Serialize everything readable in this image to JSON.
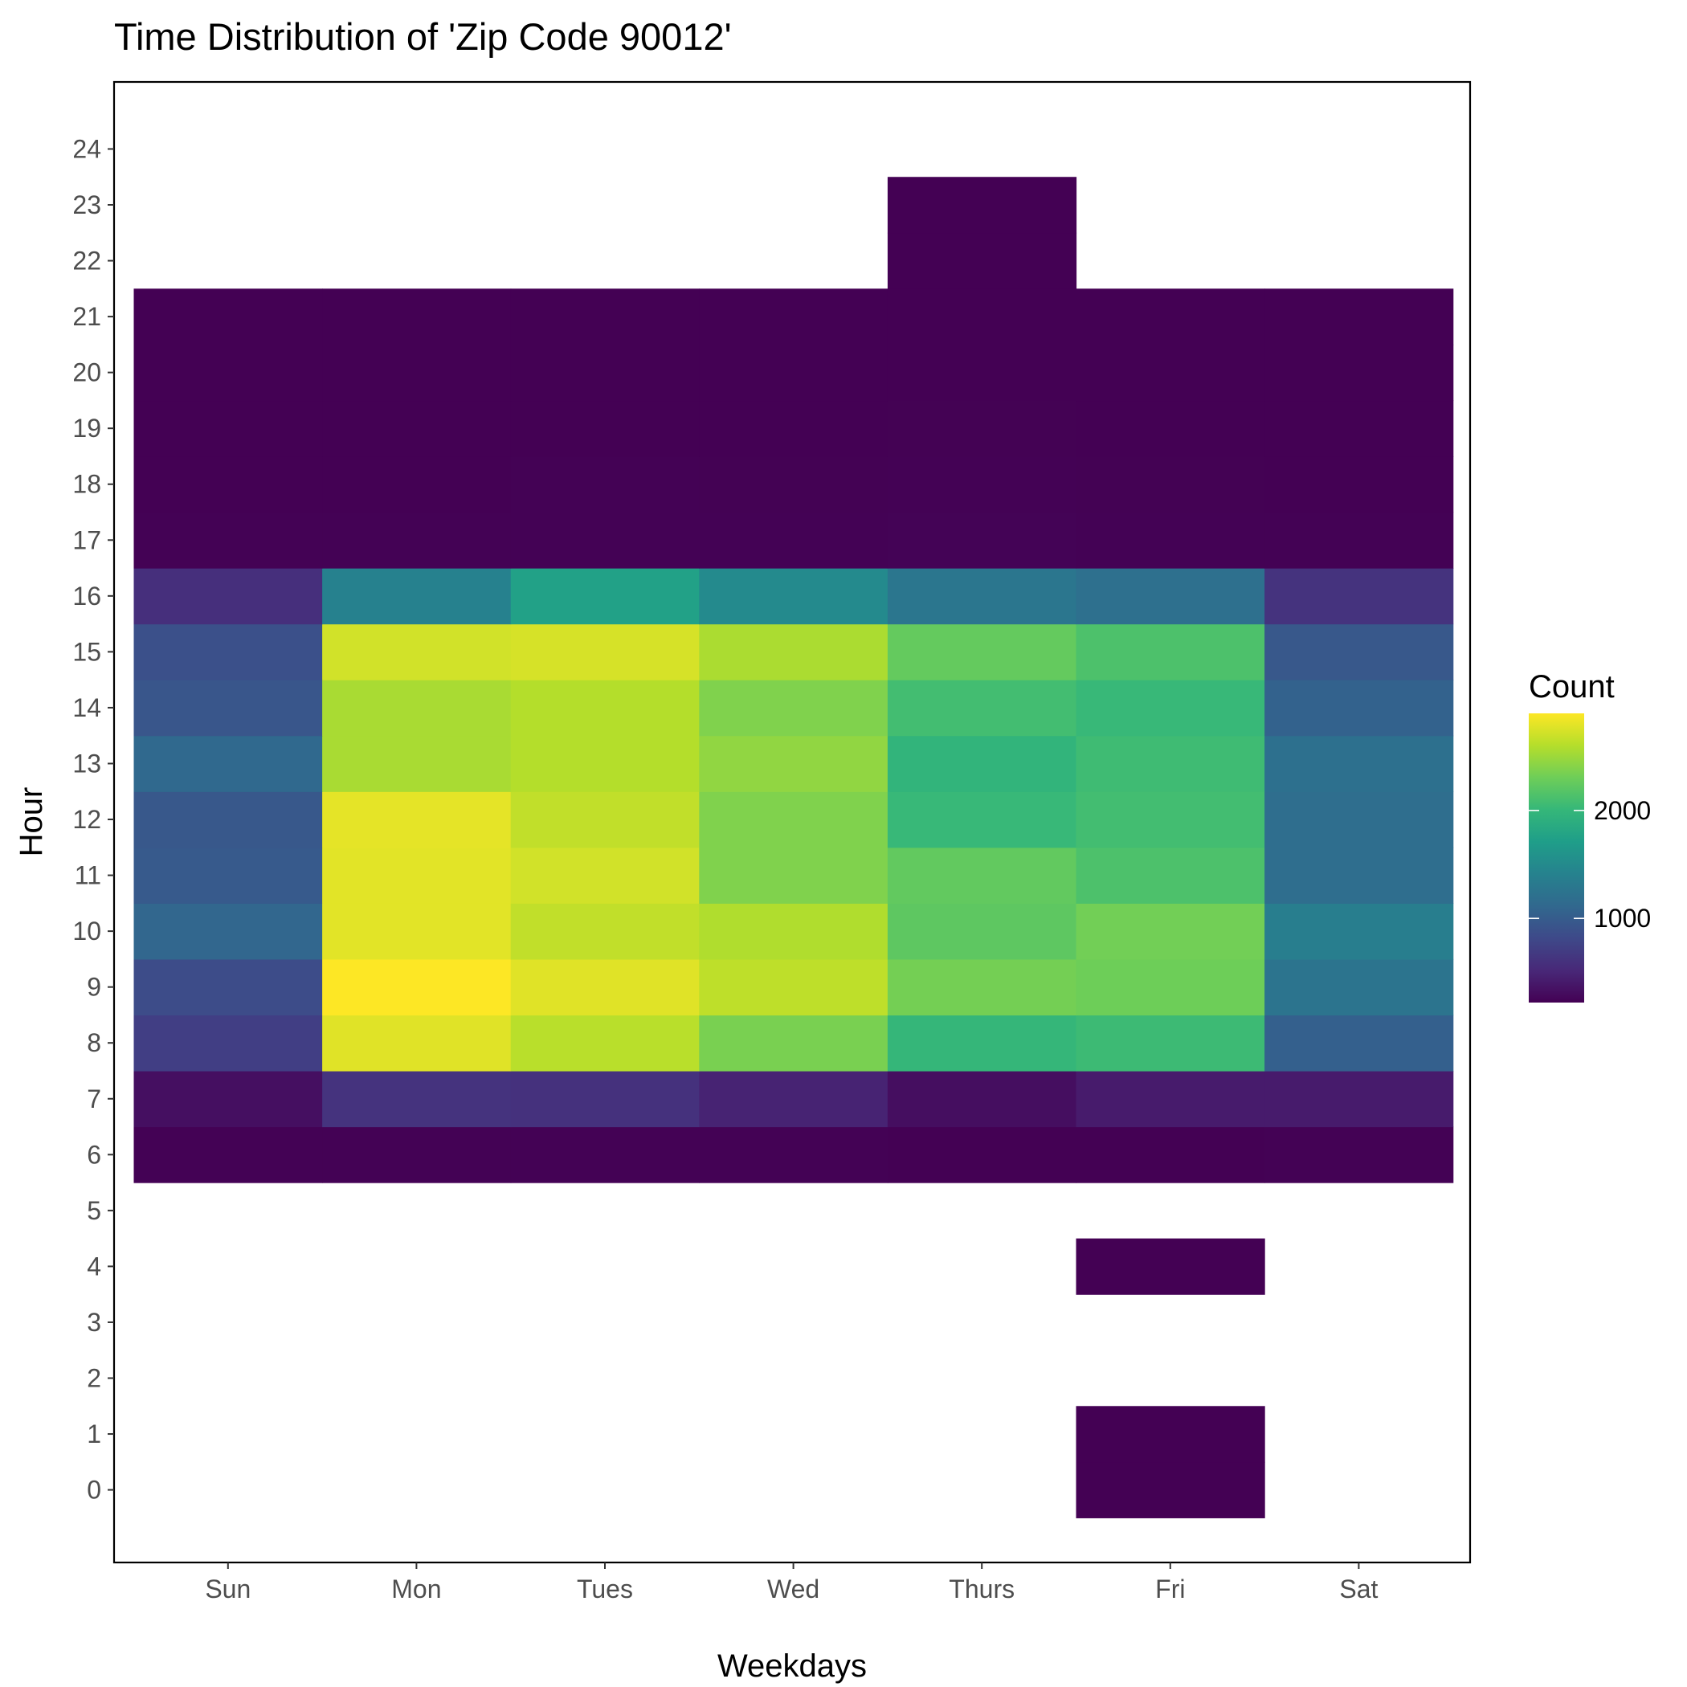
{
  "chart_data": {
    "type": "heatmap",
    "title": "Time Distribution of 'Zip Code 90012'",
    "xlabel": "Weekdays",
    "ylabel": "Hour",
    "x_categories": [
      "Sun",
      "Mon",
      "Tues",
      "Wed",
      "Thurs",
      "Fri",
      "Sat"
    ],
    "y_ticks": [
      0,
      1,
      2,
      3,
      4,
      5,
      6,
      7,
      8,
      9,
      10,
      11,
      12,
      13,
      14,
      15,
      16,
      17,
      18,
      19,
      20,
      21,
      22,
      23,
      24
    ],
    "y_range": [
      -1.3,
      25.2
    ],
    "legend": {
      "title": "Count",
      "position": "right",
      "min": 220,
      "max": 2900,
      "breaks": [
        1000,
        2000
      ]
    },
    "colorscale": "viridis",
    "grid": false,
    "cells": [
      {
        "day": "Fri",
        "hour": 0,
        "value": 220
      },
      {
        "day": "Fri",
        "hour": 1,
        "value": 220
      },
      {
        "day": "Fri",
        "hour": 4,
        "value": 220
      },
      {
        "day": "Sun",
        "hour": 6,
        "value": 230
      },
      {
        "day": "Mon",
        "hour": 6,
        "value": 230
      },
      {
        "day": "Tues",
        "hour": 6,
        "value": 225
      },
      {
        "day": "Wed",
        "hour": 6,
        "value": 225
      },
      {
        "day": "Thurs",
        "hour": 6,
        "value": 222
      },
      {
        "day": "Fri",
        "hour": 6,
        "value": 222
      },
      {
        "day": "Sat",
        "hour": 6,
        "value": 225
      },
      {
        "day": "Sun",
        "hour": 7,
        "value": 330
      },
      {
        "day": "Mon",
        "hour": 7,
        "value": 620
      },
      {
        "day": "Tues",
        "hour": 7,
        "value": 600
      },
      {
        "day": "Wed",
        "hour": 7,
        "value": 480
      },
      {
        "day": "Thurs",
        "hour": 7,
        "value": 320
      },
      {
        "day": "Fri",
        "hour": 7,
        "value": 420
      },
      {
        "day": "Sat",
        "hour": 7,
        "value": 420
      },
      {
        "day": "Sun",
        "hour": 8,
        "value": 720
      },
      {
        "day": "Mon",
        "hour": 8,
        "value": 2780
      },
      {
        "day": "Tues",
        "hour": 8,
        "value": 2620
      },
      {
        "day": "Wed",
        "hour": 8,
        "value": 2350
      },
      {
        "day": "Thurs",
        "hour": 8,
        "value": 2000
      },
      {
        "day": "Fri",
        "hour": 8,
        "value": 2050
      },
      {
        "day": "Sat",
        "hour": 8,
        "value": 1040
      },
      {
        "day": "Sun",
        "hour": 9,
        "value": 840
      },
      {
        "day": "Mon",
        "hour": 9,
        "value": 2900
      },
      {
        "day": "Tues",
        "hour": 9,
        "value": 2780
      },
      {
        "day": "Wed",
        "hour": 9,
        "value": 2640
      },
      {
        "day": "Thurs",
        "hour": 9,
        "value": 2330
      },
      {
        "day": "Fri",
        "hour": 9,
        "value": 2300
      },
      {
        "day": "Sat",
        "hour": 9,
        "value": 1250
      },
      {
        "day": "Sun",
        "hour": 10,
        "value": 1100
      },
      {
        "day": "Mon",
        "hour": 10,
        "value": 2790
      },
      {
        "day": "Tues",
        "hour": 10,
        "value": 2650
      },
      {
        "day": "Wed",
        "hour": 10,
        "value": 2580
      },
      {
        "day": "Thurs",
        "hour": 10,
        "value": 2220
      },
      {
        "day": "Fri",
        "hour": 10,
        "value": 2320
      },
      {
        "day": "Sat",
        "hour": 10,
        "value": 1370
      },
      {
        "day": "Sun",
        "hour": 11,
        "value": 980
      },
      {
        "day": "Mon",
        "hour": 11,
        "value": 2790
      },
      {
        "day": "Tues",
        "hour": 11,
        "value": 2720
      },
      {
        "day": "Wed",
        "hour": 11,
        "value": 2380
      },
      {
        "day": "Thurs",
        "hour": 11,
        "value": 2240
      },
      {
        "day": "Fri",
        "hour": 11,
        "value": 2130
      },
      {
        "day": "Sat",
        "hour": 11,
        "value": 1180
      },
      {
        "day": "Sun",
        "hour": 12,
        "value": 960
      },
      {
        "day": "Mon",
        "hour": 12,
        "value": 2800
      },
      {
        "day": "Tues",
        "hour": 12,
        "value": 2650
      },
      {
        "day": "Wed",
        "hour": 12,
        "value": 2380
      },
      {
        "day": "Thurs",
        "hour": 12,
        "value": 2020
      },
      {
        "day": "Fri",
        "hour": 12,
        "value": 2080
      },
      {
        "day": "Sat",
        "hour": 12,
        "value": 1180
      },
      {
        "day": "Sun",
        "hour": 13,
        "value": 1130
      },
      {
        "day": "Mon",
        "hour": 13,
        "value": 2550
      },
      {
        "day": "Tues",
        "hour": 13,
        "value": 2600
      },
      {
        "day": "Wed",
        "hour": 13,
        "value": 2450
      },
      {
        "day": "Thurs",
        "hour": 13,
        "value": 1970
      },
      {
        "day": "Fri",
        "hour": 13,
        "value": 2060
      },
      {
        "day": "Sat",
        "hour": 13,
        "value": 1210
      },
      {
        "day": "Sun",
        "hour": 14,
        "value": 940
      },
      {
        "day": "Mon",
        "hour": 14,
        "value": 2550
      },
      {
        "day": "Tues",
        "hour": 14,
        "value": 2600
      },
      {
        "day": "Wed",
        "hour": 14,
        "value": 2380
      },
      {
        "day": "Thurs",
        "hour": 14,
        "value": 2080
      },
      {
        "day": "Fri",
        "hour": 14,
        "value": 2020
      },
      {
        "day": "Sat",
        "hour": 14,
        "value": 1060
      },
      {
        "day": "Sun",
        "hour": 15,
        "value": 880
      },
      {
        "day": "Mon",
        "hour": 15,
        "value": 2720
      },
      {
        "day": "Tues",
        "hour": 15,
        "value": 2740
      },
      {
        "day": "Wed",
        "hour": 15,
        "value": 2560
      },
      {
        "day": "Thurs",
        "hour": 15,
        "value": 2250
      },
      {
        "day": "Fri",
        "hour": 15,
        "value": 2130
      },
      {
        "day": "Sat",
        "hour": 15,
        "value": 960
      },
      {
        "day": "Sun",
        "hour": 16,
        "value": 580
      },
      {
        "day": "Mon",
        "hour": 16,
        "value": 1400
      },
      {
        "day": "Tues",
        "hour": 16,
        "value": 1750
      },
      {
        "day": "Wed",
        "hour": 16,
        "value": 1500
      },
      {
        "day": "Thurs",
        "hour": 16,
        "value": 1270
      },
      {
        "day": "Fri",
        "hour": 16,
        "value": 1200
      },
      {
        "day": "Sat",
        "hour": 16,
        "value": 620
      },
      {
        "day": "Sun",
        "hour": 17,
        "value": 225
      },
      {
        "day": "Mon",
        "hour": 17,
        "value": 225
      },
      {
        "day": "Tues",
        "hour": 17,
        "value": 230
      },
      {
        "day": "Wed",
        "hour": 17,
        "value": 228
      },
      {
        "day": "Thurs",
        "hour": 17,
        "value": 235
      },
      {
        "day": "Fri",
        "hour": 17,
        "value": 228
      },
      {
        "day": "Sat",
        "hour": 17,
        "value": 225
      },
      {
        "day": "Sun",
        "hour": 18,
        "value": 222
      },
      {
        "day": "Mon",
        "hour": 18,
        "value": 222
      },
      {
        "day": "Tues",
        "hour": 18,
        "value": 225
      },
      {
        "day": "Wed",
        "hour": 18,
        "value": 224
      },
      {
        "day": "Thurs",
        "hour": 18,
        "value": 228
      },
      {
        "day": "Fri",
        "hour": 18,
        "value": 224
      },
      {
        "day": "Sat",
        "hour": 18,
        "value": 222
      },
      {
        "day": "Sun",
        "hour": 19,
        "value": 221
      },
      {
        "day": "Mon",
        "hour": 19,
        "value": 221
      },
      {
        "day": "Tues",
        "hour": 19,
        "value": 222
      },
      {
        "day": "Wed",
        "hour": 19,
        "value": 222
      },
      {
        "day": "Thurs",
        "hour": 19,
        "value": 224
      },
      {
        "day": "Fri",
        "hour": 19,
        "value": 222
      },
      {
        "day": "Sat",
        "hour": 19,
        "value": 221
      },
      {
        "day": "Sun",
        "hour": 20,
        "value": 220
      },
      {
        "day": "Mon",
        "hour": 20,
        "value": 220
      },
      {
        "day": "Tues",
        "hour": 20,
        "value": 221
      },
      {
        "day": "Wed",
        "hour": 20,
        "value": 221
      },
      {
        "day": "Thurs",
        "hour": 20,
        "value": 222
      },
      {
        "day": "Fri",
        "hour": 20,
        "value": 221
      },
      {
        "day": "Sat",
        "hour": 20,
        "value": 220
      },
      {
        "day": "Sun",
        "hour": 21,
        "value": 220
      },
      {
        "day": "Mon",
        "hour": 21,
        "value": 220
      },
      {
        "day": "Tues",
        "hour": 21,
        "value": 220
      },
      {
        "day": "Wed",
        "hour": 21,
        "value": 220
      },
      {
        "day": "Thurs",
        "hour": 21,
        "value": 220
      },
      {
        "day": "Fri",
        "hour": 21,
        "value": 220
      },
      {
        "day": "Sat",
        "hour": 21,
        "value": 220
      },
      {
        "day": "Thurs",
        "hour": 22,
        "value": 220
      },
      {
        "day": "Thurs",
        "hour": 23,
        "value": 220
      }
    ]
  }
}
